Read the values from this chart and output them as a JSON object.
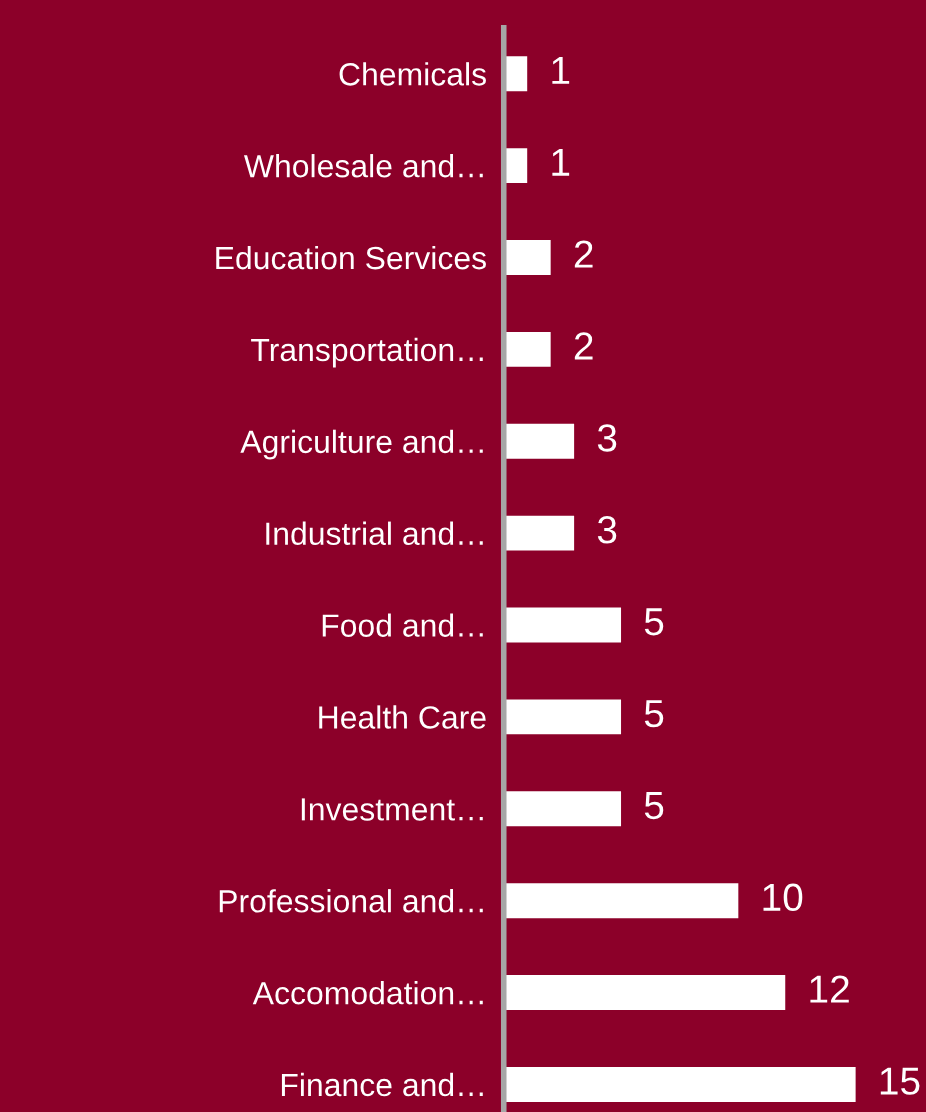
{
  "chart_data": {
    "type": "bar",
    "orientation": "horizontal",
    "categories": [
      "Chemicals",
      "Wholesale and…",
      "Education Services",
      "Transportation…",
      "Agriculture and…",
      "Industrial and…",
      "Food and…",
      "Health Care",
      "Investment…",
      "Professional and…",
      "Accomodation…",
      "Finance and…"
    ],
    "values": [
      1,
      1,
      2,
      2,
      3,
      3,
      5,
      5,
      5,
      10,
      12,
      15
    ],
    "color": "#ffffff",
    "data_labels": true,
    "tick_labels": "y",
    "grid": false,
    "legend": false,
    "xlim": [
      0,
      18
    ]
  }
}
